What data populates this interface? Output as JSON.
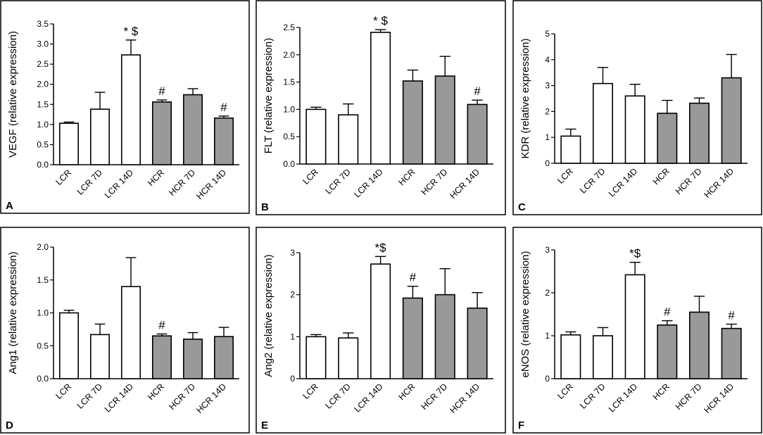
{
  "figure": {
    "bar_colors": {
      "LCR": "#ffffff",
      "HCR": "#999999"
    },
    "stroke_color": "#000000"
  },
  "chart_data": [
    {
      "panel": "A",
      "type": "bar",
      "ylabel": "VEGF (relative expression)",
      "categories": [
        "LCR",
        "LCR 7D",
        "LCR 14D",
        "HCR",
        "HCR 7D",
        "HCR 14D"
      ],
      "values": [
        1.03,
        1.38,
        2.73,
        1.56,
        1.74,
        1.16
      ],
      "errors": [
        0.03,
        0.42,
        0.37,
        0.05,
        0.15,
        0.05
      ],
      "annotations": [
        "",
        "",
        "* $",
        "#",
        "",
        "#"
      ],
      "ylim": [
        0,
        3.5
      ],
      "yticks": [
        0,
        0.5,
        1,
        1.5,
        2,
        2.5,
        3,
        3.5
      ],
      "yticklabels": [
        "0.0",
        "0.5",
        "1.0",
        "1.5",
        "2.0",
        "2.5",
        "3.0",
        "3.5"
      ]
    },
    {
      "panel": "B",
      "type": "bar",
      "ylabel": "FLT (relative expression)",
      "categories": [
        "LCR",
        "LCR 7D",
        "LCR 14D",
        "HCR",
        "HCR 7D",
        "HCR 14D"
      ],
      "values": [
        1.0,
        0.9,
        2.41,
        1.52,
        1.61,
        1.09
      ],
      "errors": [
        0.04,
        0.2,
        0.05,
        0.2,
        0.36,
        0.08
      ],
      "annotations": [
        "",
        "",
        "* $",
        "",
        "",
        "#"
      ],
      "ylim": [
        0,
        2.5
      ],
      "yticks": [
        0,
        0.5,
        1,
        1.5,
        2,
        2.5
      ],
      "yticklabels": [
        "0.0",
        "0.5",
        "1.0",
        "1.5",
        "2.0",
        "2.5"
      ]
    },
    {
      "panel": "C",
      "type": "bar",
      "ylabel": "KDR (relative expression)",
      "categories": [
        "LCR",
        "LCR 7D",
        "LCR 14D",
        "HCR",
        "HCR 7D",
        "HCR 14D"
      ],
      "values": [
        1.05,
        3.08,
        2.6,
        1.93,
        2.32,
        3.3
      ],
      "errors": [
        0.27,
        0.62,
        0.45,
        0.5,
        0.2,
        0.9
      ],
      "annotations": [
        "",
        "",
        "",
        "",
        "",
        ""
      ],
      "ylim": [
        0,
        5
      ],
      "yticks": [
        0,
        1,
        2,
        3,
        4,
        5
      ],
      "yticklabels": [
        "0",
        "1",
        "2",
        "3",
        "4",
        "5"
      ]
    },
    {
      "panel": "D",
      "type": "bar",
      "ylabel": "Ang1 (relative expression)",
      "categories": [
        "LCR",
        "LCR 7D",
        "LCR 14D",
        "HCR",
        "HCR 7D",
        "HCR 14D"
      ],
      "values": [
        1.0,
        0.67,
        1.4,
        0.65,
        0.6,
        0.64
      ],
      "errors": [
        0.04,
        0.16,
        0.44,
        0.03,
        0.1,
        0.14
      ],
      "annotations": [
        "",
        "",
        "",
        "#",
        "",
        ""
      ],
      "ylim": [
        0,
        2.0
      ],
      "yticks": [
        0,
        0.5,
        1,
        1.5,
        2
      ],
      "yticklabels": [
        "0.0",
        "0.5",
        "1.0",
        "1.5",
        "2.0"
      ]
    },
    {
      "panel": "E",
      "type": "bar",
      "ylabel": "Ang2 (relative expression)",
      "categories": [
        "LCR",
        "LCR 7D",
        "LCR 14D",
        "HCR",
        "HCR 7D",
        "HCR 14D"
      ],
      "values": [
        1.0,
        0.97,
        2.73,
        1.92,
        2.0,
        1.68
      ],
      "errors": [
        0.05,
        0.12,
        0.18,
        0.28,
        0.62,
        0.37
      ],
      "annotations": [
        "",
        "",
        "*$",
        "#",
        "",
        ""
      ],
      "ylim": [
        0,
        3
      ],
      "yticks": [
        0,
        1,
        2,
        3
      ],
      "yticklabels": [
        "0",
        "1",
        "2",
        "3"
      ]
    },
    {
      "panel": "F",
      "type": "bar",
      "ylabel": "eNOS (relative expression)",
      "categories": [
        "LCR",
        "LCR 7D",
        "LCR 14D",
        "HCR",
        "HCR 7D",
        "HCR 14D"
      ],
      "values": [
        1.02,
        1.0,
        2.42,
        1.25,
        1.55,
        1.17
      ],
      "errors": [
        0.07,
        0.19,
        0.29,
        0.1,
        0.37,
        0.1
      ],
      "annotations": [
        "",
        "",
        "*$",
        "#",
        "",
        "#"
      ],
      "ylim": [
        0,
        3
      ],
      "yticks": [
        0,
        1,
        2,
        3
      ],
      "yticklabels": [
        "0",
        "1",
        "2",
        "3"
      ]
    }
  ]
}
